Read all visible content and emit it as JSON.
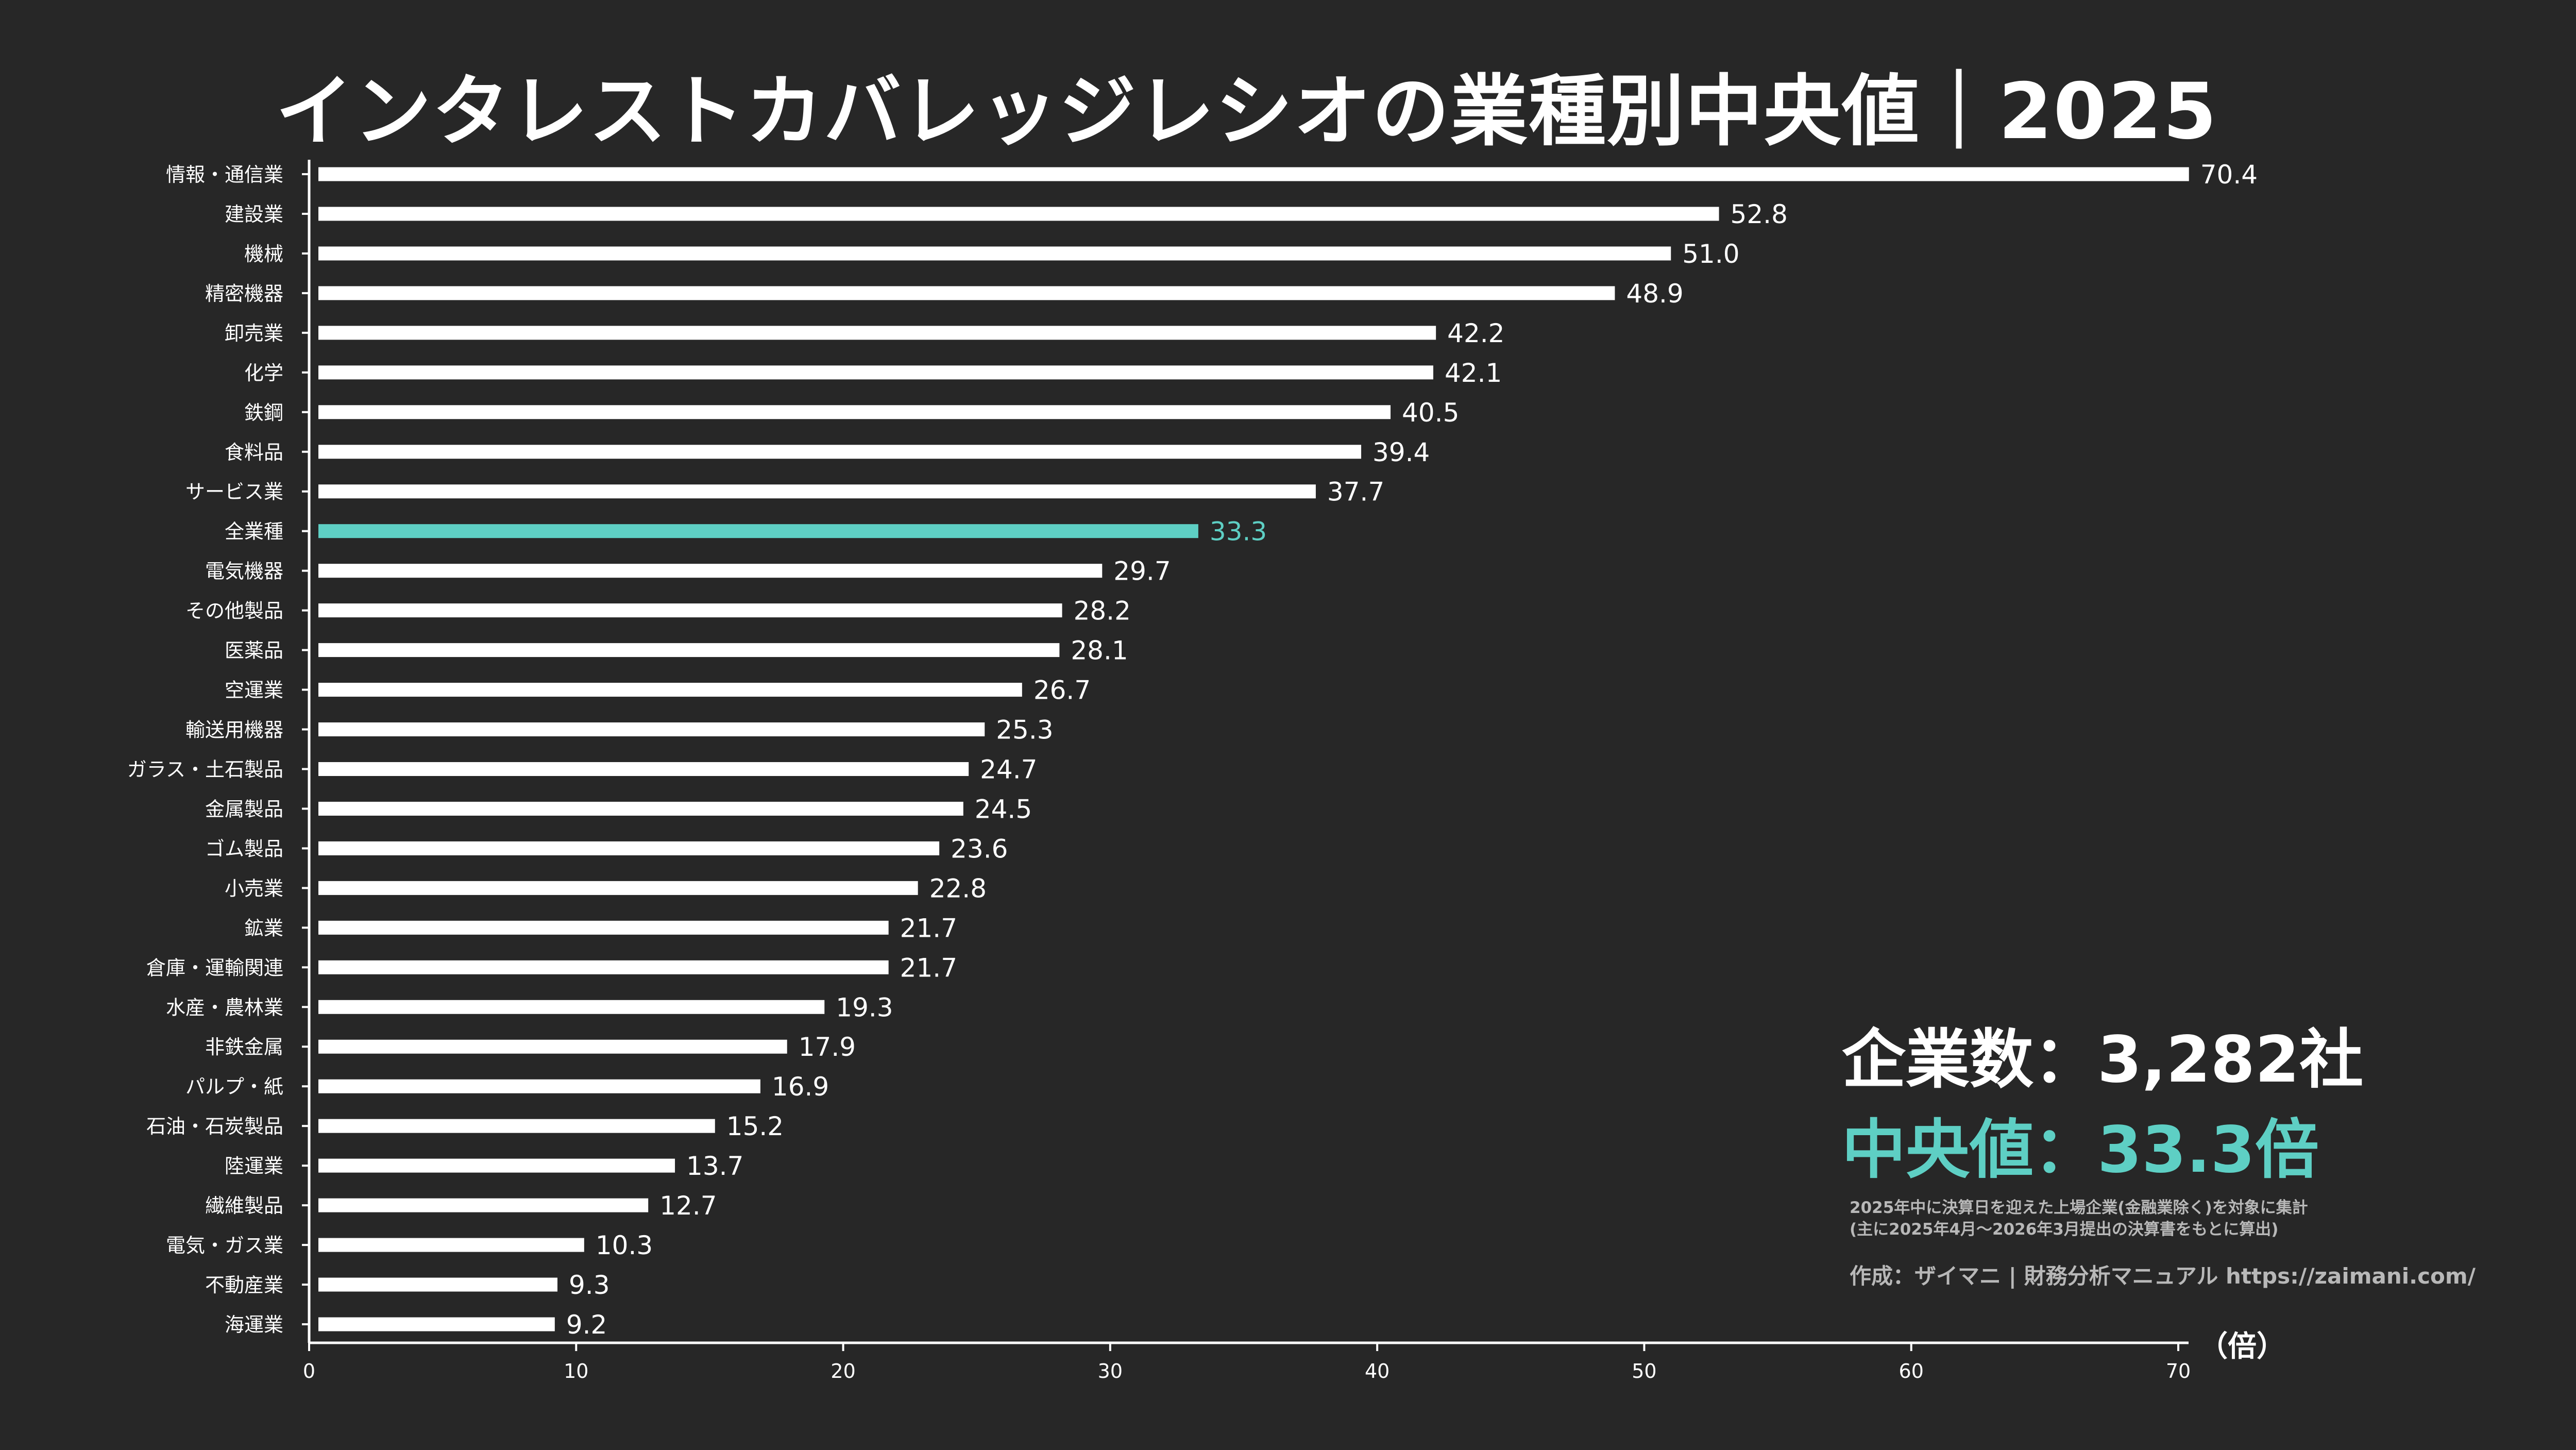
{
  "colors": {
    "background": "#272727",
    "bar": "#ffffff",
    "highlight": "#5ecfc4",
    "text": "#ffffff",
    "note": "#b8b8b8"
  },
  "chart_data": {
    "type": "bar",
    "orientation": "horizontal",
    "title": "インタレストカバレッジレシオの業種別中央値｜2025",
    "xunit": "（倍）",
    "xlim": [
      0,
      70
    ],
    "xticks": [
      "0",
      "10",
      "20",
      "30",
      "40",
      "50",
      "60",
      "70"
    ],
    "highlight_category": "全業種",
    "categories": [
      "情報・通信業",
      "建設業",
      "機械",
      "精密機器",
      "卸売業",
      "化学",
      "鉄鋼",
      "食料品",
      "サービス業",
      "全業種",
      "電気機器",
      "その他製品",
      "医薬品",
      "空運業",
      "輸送用機器",
      "ガラス・土石製品",
      "金属製品",
      "ゴム製品",
      "小売業",
      "鉱業",
      "倉庫・運輸関連",
      "水産・農林業",
      "非鉄金属",
      "パルプ・紙",
      "石油・石炭製品",
      "陸運業",
      "繊維製品",
      "電気・ガス業",
      "不動産業",
      "海運業"
    ],
    "values": [
      70.4,
      52.8,
      51.0,
      48.9,
      42.2,
      42.1,
      40.5,
      39.4,
      37.7,
      33.3,
      29.7,
      28.2,
      28.1,
      26.7,
      25.3,
      24.7,
      24.5,
      23.6,
      22.8,
      21.7,
      21.7,
      19.3,
      17.9,
      16.9,
      15.2,
      13.7,
      12.7,
      10.3,
      9.3,
      9.2
    ],
    "value_labels": [
      "70.4",
      "52.8",
      "51.0",
      "48.9",
      "42.2",
      "42.1",
      "40.5",
      "39.4",
      "37.7",
      "33.3",
      "29.7",
      "28.2",
      "28.1",
      "26.7",
      "25.3",
      "24.7",
      "24.5",
      "23.6",
      "22.8",
      "21.7",
      "21.7",
      "19.3",
      "17.9",
      "16.9",
      "15.2",
      "13.7",
      "12.7",
      "10.3",
      "9.3",
      "9.2"
    ]
  },
  "summary": {
    "company_count": "企業数：3,282社",
    "median": "中央値：33.3倍",
    "note_line1": "2025年中に決算日を迎えた上場企業(金融業除く)を対象に集計",
    "note_line2": "(主に2025年4月～2026年3月提出の決算書をもとに算出)",
    "credit": "作成：ザイマニ | 財務分析マニュアル https://zaimani.com/"
  }
}
